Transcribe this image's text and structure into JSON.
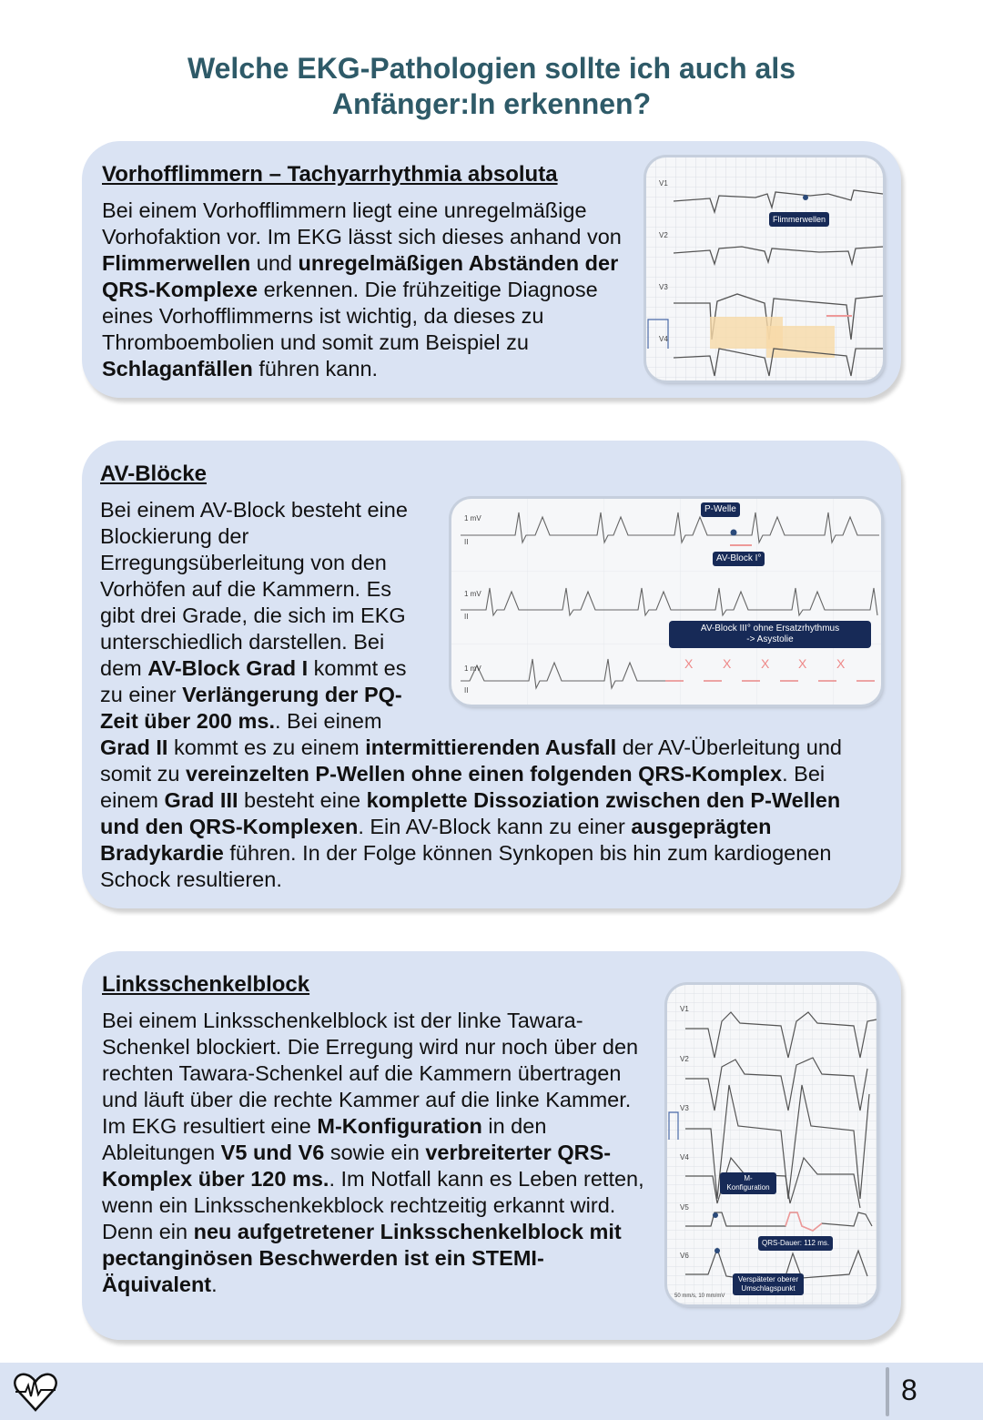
{
  "title": {
    "line1": "Welche EKG-Pathologien sollte ich auch als",
    "line2": "Anfänger:In erkennen?"
  },
  "sections": [
    {
      "heading": "Vorhofflimmern – Tachyarrhythmia absoluta",
      "paragraph": [
        {
          "t": "Bei einem Vorhofflimmern liegt eine unregelmäßige Vorhofaktion vor. Im EKG lässt sich dieses anhand von "
        },
        {
          "t": "Flimmerwellen",
          "b": true
        },
        {
          "t": " und "
        },
        {
          "t": "unregelmäßigen Abständen der QRS-Komplexe",
          "b": true
        },
        {
          "t": " erkennen. Die frühzeitige Diagnose eines Vorhofflimmerns ist wichtig, da dieses zu Thromboembolien und somit zum Beispiel zu "
        },
        {
          "t": "Schlaganfällen",
          "b": true
        },
        {
          "t": " führen kann."
        }
      ],
      "figure": {
        "leads": [
          "V1",
          "V2",
          "V3",
          "V4"
        ],
        "labels": [
          "Flimmerwellen"
        ]
      }
    },
    {
      "heading": "AV-Blöcke",
      "paragraph": [
        {
          "t": "Bei einem AV-Block besteht eine Blockierung der Erregungsüberleitung von den Vorhöfen auf die Kammern. Es gibt drei Grade, die sich im EKG unterschiedlich darstellen. Bei dem "
        },
        {
          "t": "AV-Block Grad I",
          "b": true
        },
        {
          "t": " kommt es zu einer "
        },
        {
          "t": "Verlängerung der PQ-Zeit über 200 ms.",
          "b": true
        },
        {
          "t": ". Bei einem "
        },
        {
          "t": "Grad II",
          "b": true
        },
        {
          "t": " kommt es zu einem "
        },
        {
          "t": "intermittierenden Ausfall",
          "b": true
        },
        {
          "t": " der AV-Überleitung und somit zu "
        },
        {
          "t": "vereinzelten P-Wellen ohne einen folgenden QRS-Komplex",
          "b": true
        },
        {
          "t": ". Bei einem "
        },
        {
          "t": "Grad III",
          "b": true
        },
        {
          "t": " besteht eine "
        },
        {
          "t": "komplette Dissoziation zwischen den P-Wellen und den QRS-Komplexen",
          "b": true
        },
        {
          "t": ". Ein AV-Block kann zu einer "
        },
        {
          "t": "ausgeprägten Bradykardie",
          "b": true
        },
        {
          "t": " führen. In der Folge können Synkopen bis hin zum kardiogenen Schock resultieren."
        }
      ],
      "figure": {
        "scale": "1 mV",
        "lead": "II",
        "labels": [
          "P-Welle",
          "AV-Block I°",
          "AV-Block III° ohne Ersatzrhythmus",
          "-> Asystolie"
        ],
        "missing_mark": "X"
      }
    },
    {
      "heading": "Linksschenkelblock",
      "paragraph": [
        {
          "t": "Bei einem Linksschenkelblock ist der linke Tawara-Schenkel blockiert. Die Erregung wird nur noch über den rechten Tawara-Schenkel auf die Kammern übertragen und läuft über die rechte Kammer auf die linke Kammer. Im EKG resultiert eine "
        },
        {
          "t": "M-Konfiguration",
          "b": true
        },
        {
          "t": " in den Ableitungen "
        },
        {
          "t": "V5 und V6",
          "b": true
        },
        {
          "t": " sowie ein "
        },
        {
          "t": "verbreiterter QRS-Komplex über 120 ms.",
          "b": true
        },
        {
          "t": ". Im Notfall kann es Leben retten, wenn ein Linksschenkekblock rechtzeitig erkannt wird. Denn ein "
        },
        {
          "t": "neu aufgetretener Linksschenkelblock mit pectanginösen Beschwerden ist ein STEMI-Äquivalent",
          "b": true
        },
        {
          "t": "."
        }
      ],
      "figure": {
        "leads": [
          "V1",
          "V2",
          "V3",
          "V4",
          "V5",
          "V6"
        ],
        "labels": [
          "M-Konfiguration",
          "QRS-Dauer: 112 ms.",
          "Verspäteter oberer Umschlagspunkt"
        ],
        "footnote": "50 mm/s, 10 mm/mV"
      }
    }
  ],
  "footer": {
    "page_number": "8",
    "icon": "heart-pulse-icon"
  },
  "colors": {
    "title": "#2e5a68",
    "card": "#dae3f3",
    "label": "#172a57",
    "highlight": "#e88888"
  }
}
